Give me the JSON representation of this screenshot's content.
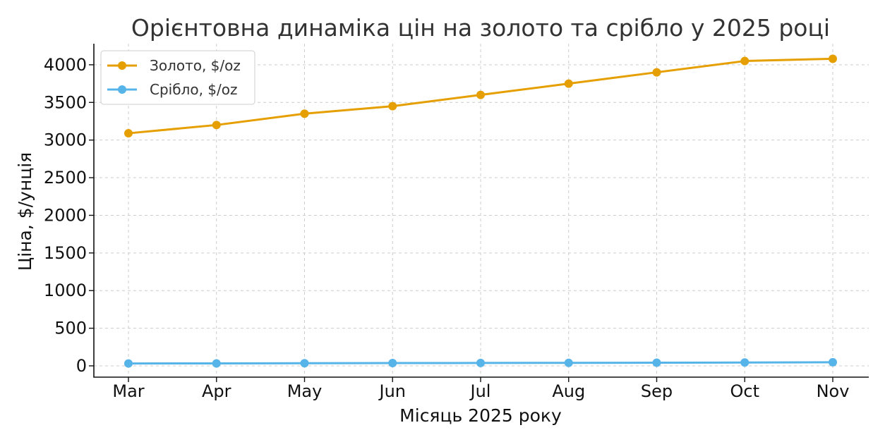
{
  "chart_data": {
    "type": "line",
    "title": "Орієнтовна динаміка цін на золото та срібло у 2025 році",
    "xlabel": "Місяць 2025 року",
    "ylabel": "Ціна, $/унція",
    "categories": [
      "Mar",
      "Apr",
      "May",
      "Jun",
      "Jul",
      "Aug",
      "Sep",
      "Oct",
      "Nov"
    ],
    "ylim": [
      -150,
      4280
    ],
    "yticks": [
      0,
      500,
      1000,
      1500,
      2000,
      2500,
      3000,
      3500,
      4000
    ],
    "grid": true,
    "legend_position": "top-left",
    "series": [
      {
        "name": "Золото, $/oz",
        "color": "#E69F00",
        "marker": "circle",
        "values": [
          3090,
          3200,
          3350,
          3450,
          3600,
          3750,
          3900,
          4050,
          4080
        ]
      },
      {
        "name": "Срібло, $/oz",
        "color": "#56B4E9",
        "marker": "circle",
        "values": [
          32,
          33,
          35,
          37,
          38,
          40,
          42,
          44,
          48
        ]
      }
    ]
  }
}
